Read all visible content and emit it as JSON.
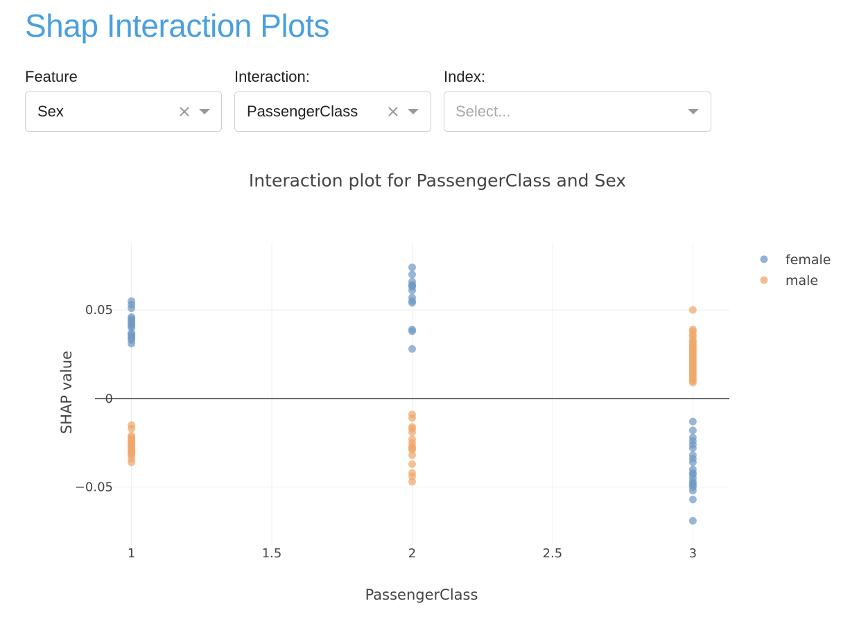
{
  "page": {
    "title": "Shap Interaction Plots"
  },
  "controls": {
    "feature": {
      "label": "Feature",
      "value": "Sex"
    },
    "interaction": {
      "label": "Interaction:",
      "value": "PassengerClass"
    },
    "index": {
      "label": "Index:",
      "placeholder": "Select..."
    }
  },
  "colors": {
    "title": "#4a9fde",
    "female": "#6f98c4",
    "male": "#f0a66a",
    "zero_line": "#444444",
    "grid": "#eeeeee"
  },
  "chart_data": {
    "type": "scatter",
    "title": "Interaction plot for PassengerClass and Sex",
    "xlabel": "PassengerClass",
    "ylabel": "SHAP value",
    "xlim": [
      0.87,
      3.13
    ],
    "ylim": [
      -0.083,
      0.088
    ],
    "xticks": [
      1,
      1.5,
      2,
      2.5,
      3
    ],
    "xtick_labels": [
      "1",
      "1.5",
      "2",
      "2.5",
      "3"
    ],
    "yticks": [
      -0.05,
      0,
      0.05
    ],
    "ytick_labels": [
      "−0.05",
      "0",
      "0.05"
    ],
    "zero_line": true,
    "grid": true,
    "legend_placement": "top-right",
    "series": [
      {
        "name": "female",
        "color": "#6f98c4",
        "x": [
          1,
          1,
          1,
          1,
          1,
          1,
          1,
          1,
          1,
          1,
          1,
          1,
          1,
          1,
          1,
          1,
          2,
          2,
          2,
          2,
          2,
          2,
          2,
          2,
          2,
          2,
          2,
          2,
          2,
          3,
          3,
          3,
          3,
          3,
          3,
          3,
          3,
          3,
          3,
          3,
          3,
          3,
          3,
          3,
          3,
          3,
          3,
          3,
          3
        ],
        "y": [
          0.055,
          0.053,
          0.051,
          0.046,
          0.045,
          0.044,
          0.043,
          0.042,
          0.041,
          0.04,
          0.037,
          0.036,
          0.035,
          0.034,
          0.033,
          0.031,
          0.074,
          0.07,
          0.066,
          0.064,
          0.063,
          0.061,
          0.057,
          0.055,
          0.054,
          0.039,
          0.038,
          0.028,
          0.064,
          -0.013,
          -0.018,
          -0.022,
          -0.024,
          -0.026,
          -0.028,
          -0.032,
          -0.034,
          -0.036,
          -0.04,
          -0.042,
          -0.043,
          -0.045,
          -0.047,
          -0.048,
          -0.049,
          -0.05,
          -0.052,
          -0.057,
          -0.069
        ]
      },
      {
        "name": "male",
        "color": "#f0a66a",
        "x": [
          1,
          1,
          1,
          1,
          1,
          1,
          1,
          1,
          1,
          1,
          1,
          1,
          1,
          1,
          1,
          1,
          1,
          1,
          2,
          2,
          2,
          2,
          2,
          2,
          2,
          2,
          2,
          2,
          2,
          2,
          2,
          2,
          2,
          3,
          3,
          3,
          3,
          3,
          3,
          3,
          3,
          3,
          3,
          3,
          3,
          3,
          3,
          3,
          3,
          3,
          3,
          3,
          3,
          3,
          3,
          3,
          3,
          3,
          3,
          3,
          3,
          3,
          3
        ],
        "y": [
          -0.015,
          -0.017,
          -0.021,
          -0.022,
          -0.023,
          -0.024,
          -0.025,
          -0.026,
          -0.027,
          -0.028,
          -0.029,
          -0.03,
          -0.031,
          -0.032,
          -0.034,
          -0.036,
          -0.025,
          -0.03,
          -0.009,
          -0.011,
          -0.016,
          -0.017,
          -0.019,
          -0.023,
          -0.025,
          -0.027,
          -0.028,
          -0.029,
          -0.032,
          -0.037,
          -0.042,
          -0.044,
          -0.047,
          0.05,
          0.039,
          0.038,
          0.036,
          0.035,
          0.033,
          0.032,
          0.031,
          0.03,
          0.029,
          0.028,
          0.027,
          0.026,
          0.025,
          0.024,
          0.023,
          0.022,
          0.021,
          0.02,
          0.019,
          0.018,
          0.017,
          0.016,
          0.015,
          0.014,
          0.013,
          0.012,
          0.011,
          0.01,
          0.009
        ]
      }
    ]
  }
}
